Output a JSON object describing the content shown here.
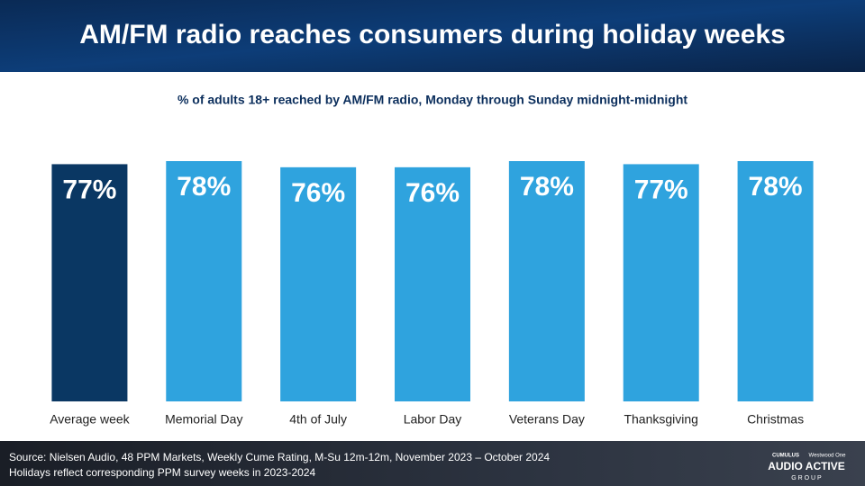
{
  "chart_data": {
    "type": "bar",
    "title": "AM/FM radio reaches consumers during holiday weeks",
    "subtitle": "% of adults 18+ reached by AM/FM radio, Monday through Sunday midnight-midnight",
    "categories": [
      "Average week",
      "Memorial Day",
      "4th of July",
      "Labor Day",
      "Veterans Day",
      "Thanksgiving",
      "Christmas"
    ],
    "values": [
      77,
      78,
      76,
      76,
      78,
      77,
      78
    ],
    "value_labels": [
      "77%",
      "78%",
      "76%",
      "76%",
      "78%",
      "77%",
      "78%"
    ],
    "colors": [
      "#0a3763",
      "#2fa3de",
      "#2fa3de",
      "#2fa3de",
      "#2fa3de",
      "#2fa3de",
      "#2fa3de"
    ],
    "notes": [
      "Source: Nielsen Audio, 48 PPM Markets, Weekly Cume Rating, M-Su 12m-12m, November 2023 – October 2024",
      "Holidays reflect corresponding PPM survey weeks in 2023-2024"
    ],
    "logo": [
      "CUMULUS",
      "Westwood One",
      "AUDIO ACTIVE",
      "G R O U P"
    ]
  }
}
